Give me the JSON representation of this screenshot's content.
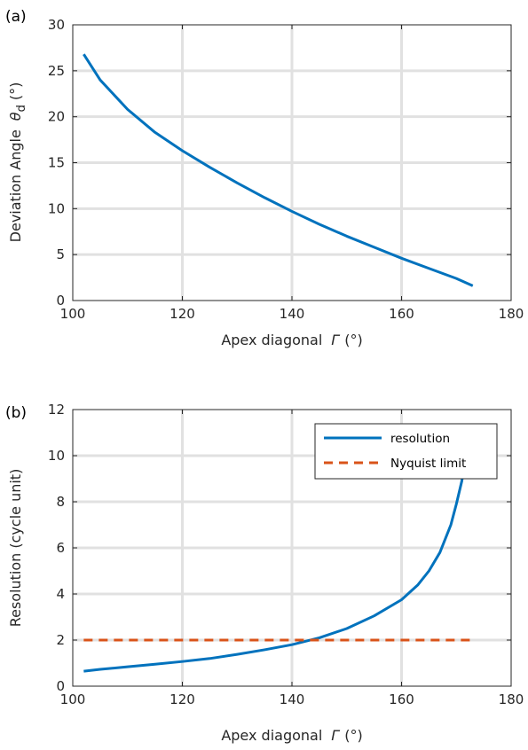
{
  "chart_data": [
    {
      "type": "line",
      "panel_label": "(a)",
      "xlabel_text": "Apex diagonal",
      "xlabel_symbol": "Γ",
      "xlabel_unit": "(°)",
      "ylabel_text": "Deviation Angle",
      "ylabel_symbol": "θ",
      "ylabel_subscript": "d",
      "ylabel_unit": "(°)",
      "xlim": [
        100,
        180
      ],
      "ylim": [
        0,
        30
      ],
      "xticks": [
        100,
        120,
        140,
        160,
        180
      ],
      "yticks": [
        0,
        5,
        10,
        15,
        20,
        25,
        30
      ],
      "grid": true,
      "series": [
        {
          "color": "#0072bd",
          "style": "solid",
          "x": [
            102,
            105,
            110,
            115,
            120,
            125,
            130,
            135,
            140,
            145,
            150,
            155,
            160,
            165,
            170,
            173
          ],
          "y": [
            26.8,
            24.0,
            20.8,
            18.3,
            16.3,
            14.5,
            12.8,
            11.2,
            9.7,
            8.3,
            7.0,
            5.8,
            4.6,
            3.5,
            2.4,
            1.6
          ]
        }
      ]
    },
    {
      "type": "line",
      "panel_label": "(b)",
      "xlabel_text": "Apex diagonal",
      "xlabel_symbol": "Γ",
      "xlabel_unit": "(°)",
      "ylabel": "Resolution (cycle unit)",
      "xlim": [
        100,
        180
      ],
      "ylim": [
        0,
        12
      ],
      "xticks": [
        100,
        120,
        140,
        160,
        180
      ],
      "yticks": [
        0,
        2,
        4,
        6,
        8,
        10,
        12
      ],
      "grid": true,
      "legend_position": "top-right",
      "series": [
        {
          "name": "resolution",
          "color": "#0072bd",
          "style": "solid",
          "x": [
            102,
            105,
            110,
            115,
            120,
            125,
            130,
            135,
            140,
            145,
            150,
            155,
            160,
            163,
            165,
            167,
            169,
            170,
            171,
            172
          ],
          "y": [
            0.65,
            0.73,
            0.84,
            0.95,
            1.07,
            1.2,
            1.38,
            1.58,
            1.8,
            2.1,
            2.5,
            3.05,
            3.75,
            4.4,
            5.0,
            5.8,
            7.0,
            7.9,
            8.9,
            10.3
          ]
        },
        {
          "name": "Nyquist limit",
          "color": "#d95319",
          "style": "dashed",
          "x": [
            102,
            173
          ],
          "y": [
            2,
            2
          ]
        }
      ]
    }
  ]
}
